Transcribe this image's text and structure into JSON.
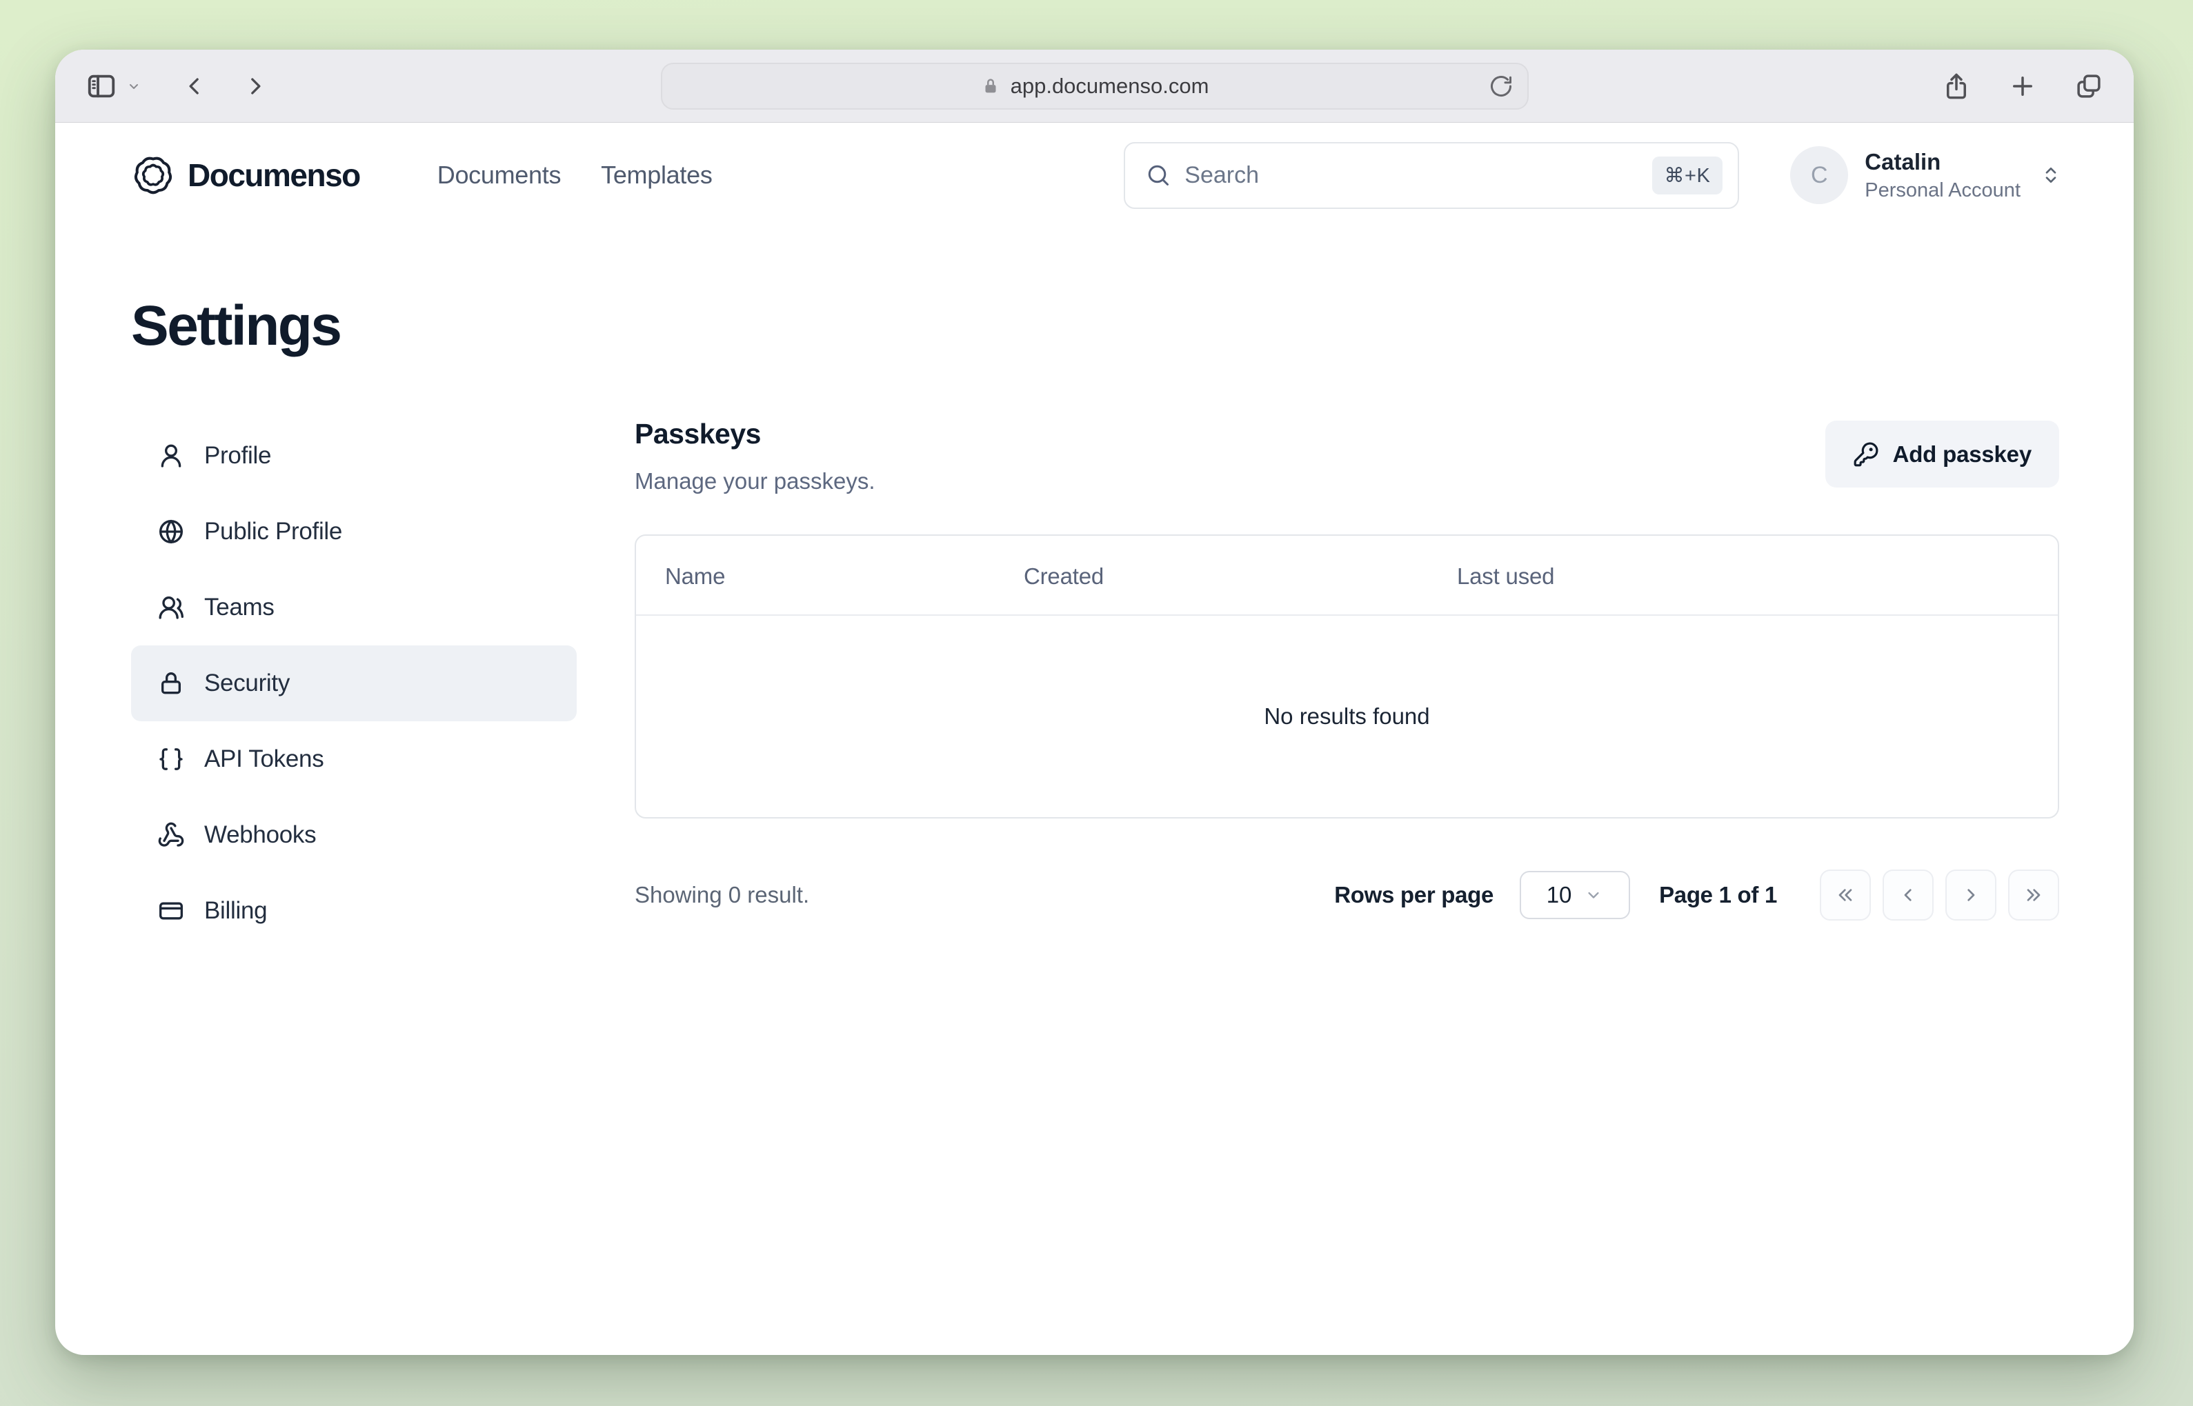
{
  "browser": {
    "url": "app.documenso.com",
    "toolbar_icons": [
      "sidebar-toggle-icon",
      "chevron-down-icon",
      "back-icon",
      "forward-icon",
      "lock-icon",
      "reload-icon",
      "share-icon",
      "new-tab-icon",
      "tab-overview-icon"
    ]
  },
  "header": {
    "brand": "Documenso",
    "nav": [
      {
        "label": "Documents"
      },
      {
        "label": "Templates"
      }
    ],
    "search": {
      "placeholder": "Search",
      "shortcut": "⌘+K"
    },
    "user": {
      "initial": "C",
      "name": "Catalin",
      "account_type": "Personal Account"
    }
  },
  "page": {
    "title": "Settings"
  },
  "sidebar": {
    "items": [
      {
        "label": "Profile",
        "icon": "user-icon",
        "active": false
      },
      {
        "label": "Public Profile",
        "icon": "globe-icon",
        "active": false
      },
      {
        "label": "Teams",
        "icon": "users-icon",
        "active": false
      },
      {
        "label": "Security",
        "icon": "lock-icon",
        "active": true
      },
      {
        "label": "API Tokens",
        "icon": "braces-icon",
        "active": false
      },
      {
        "label": "Webhooks",
        "icon": "webhook-icon",
        "active": false
      },
      {
        "label": "Billing",
        "icon": "credit-card-icon",
        "active": false
      }
    ]
  },
  "main": {
    "section_title": "Passkeys",
    "section_subtitle": "Manage your passkeys.",
    "add_button_label": "Add passkey",
    "table": {
      "columns": [
        "Name",
        "Created",
        "Last used"
      ],
      "rows": [],
      "empty_text": "No results found"
    },
    "footer": {
      "showing": "Showing 0 result.",
      "rows_per_page_label": "Rows per page",
      "rows_per_page_value": "10",
      "page_status": "Page 1 of 1"
    }
  },
  "colors": {
    "desktop_green": "#d9e8cd",
    "window_bg": "#ffffff",
    "toolbar_gray": "#ebebef",
    "text_dark": "#101b2b",
    "text_muted": "#5d6880",
    "active_item_bg": "#eef1f5",
    "button_bg": "#f2f4f8"
  }
}
